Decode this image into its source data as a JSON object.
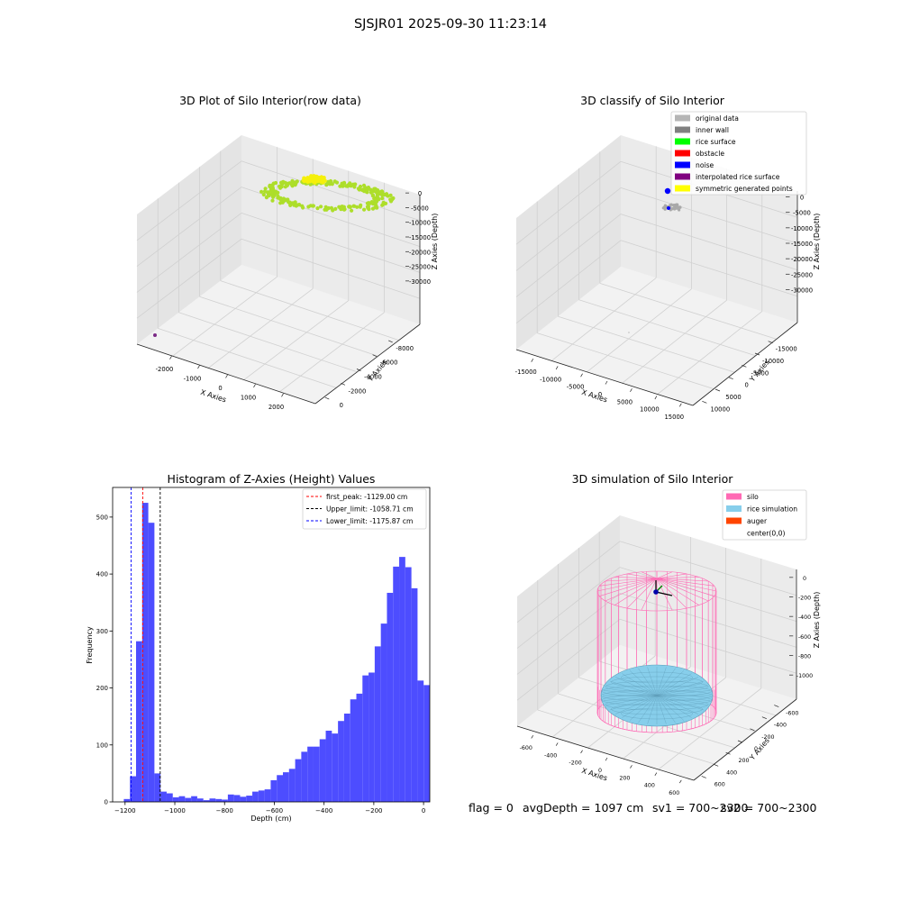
{
  "suptitle": "SJSJR01 2025-09-30 11:23:14",
  "status": {
    "flag": "flag = 0",
    "avg_depth": "avgDepth = 1097 cm",
    "sv1": "sv1 = 700~2300",
    "sv2": "sv2 = 700~2300"
  },
  "chart_data": [
    {
      "id": "raw",
      "type": "scatter",
      "projection": "3d",
      "title": "3D Plot of Silo Interior(row data)",
      "xlabel": "X Axies",
      "ylabel": "Y Axies",
      "zlabel": "Z Axies (Depth)",
      "x_ticks": [
        "-2000",
        "-1000",
        "0",
        "1000",
        "2000"
      ],
      "y_ticks": [
        "0",
        "-2000",
        "-4000",
        "-6000",
        "-8000"
      ],
      "z_ticks": [
        "0",
        "-5000",
        "-10000",
        "-15000",
        "-20000",
        "-25000",
        "-30000"
      ],
      "colors": {
        "surface": "#adde2a",
        "top": "#f5f00a",
        "outlier": "#7b2a86"
      }
    },
    {
      "id": "classify",
      "type": "scatter",
      "projection": "3d",
      "title": "3D classify of Silo Interior",
      "xlabel": "X Axies",
      "ylabel": "Y Axies",
      "zlabel": "Z Axies (Depth)",
      "x_ticks": [
        "-15000",
        "-10000",
        "-5000",
        "0",
        "5000",
        "10000",
        "15000"
      ],
      "y_ticks": [
        "10000",
        "5000",
        "0",
        "-5000",
        "-10000",
        "-15000"
      ],
      "z_ticks": [
        "0",
        "-5000",
        "-10000",
        "-15000",
        "-20000",
        "-25000",
        "-30000"
      ],
      "legend": [
        {
          "label": "original data",
          "color": "#b5b5b5"
        },
        {
          "label": "inner wall",
          "color": "#808080"
        },
        {
          "label": "rice surface",
          "color": "#00ff00"
        },
        {
          "label": "obstacle",
          "color": "#ff0000"
        },
        {
          "label": "noise",
          "color": "#0000ff"
        },
        {
          "label": "interpolated rice surface",
          "color": "#800080"
        },
        {
          "label": "symmetric generated points",
          "color": "#ffff00"
        }
      ]
    },
    {
      "id": "histogram",
      "type": "bar",
      "title": "Histogram of Z-Axies (Height) Values",
      "xlabel": "Depth (cm)",
      "ylabel": "Frequency",
      "xlim": [
        -1250,
        25
      ],
      "ylim": [
        0,
        552
      ],
      "x_ticks": [
        -1200,
        -1000,
        -800,
        -600,
        -400,
        -200,
        0
      ],
      "y_ticks": [
        0,
        100,
        200,
        300,
        400,
        500
      ],
      "bin_start": -1205,
      "bin_width": 24.6,
      "values": [
        5,
        45,
        282,
        525,
        490,
        50,
        18,
        15,
        8,
        10,
        7,
        10,
        6,
        3,
        6,
        5,
        4,
        13,
        12,
        9,
        11,
        18,
        20,
        22,
        38,
        47,
        52,
        58,
        75,
        88,
        97,
        97,
        110,
        125,
        120,
        142,
        155,
        180,
        190,
        222,
        227,
        273,
        313,
        367,
        413,
        430,
        412,
        375,
        213,
        205
      ],
      "bar_color": "#4d4dff",
      "vlines": [
        {
          "label": "first_peak: -1129.00 cm",
          "x": -1129,
          "color": "#ff0000"
        },
        {
          "label": "Upper_limit: -1058.71 cm",
          "x": -1058.71,
          "color": "#000000"
        },
        {
          "label": "Lower_limit: -1175.87 cm",
          "x": -1175.87,
          "color": "#0000ff"
        }
      ]
    },
    {
      "id": "simulation",
      "type": "surface",
      "projection": "3d",
      "title": "3D simulation of Silo Interior",
      "xlabel": "X Axies",
      "ylabel": "Y Axies",
      "zlabel": "Z Axies (Depth)",
      "x_ticks": [
        "-600",
        "-400",
        "-200",
        "0",
        "200",
        "400",
        "600"
      ],
      "y_ticks": [
        "600",
        "400",
        "200",
        "0",
        "-200",
        "-400",
        "-600"
      ],
      "z_ticks": [
        "0",
        "-200",
        "-400",
        "-600",
        "-800",
        "-1000"
      ],
      "legend": [
        {
          "label": "silo",
          "color": "#ff69b4"
        },
        {
          "label": "rice simulation",
          "color": "#87ceeb"
        },
        {
          "label": "auger",
          "color": "#ff4500"
        },
        {
          "label": "center(0,0)",
          "color": "#ffffff"
        }
      ]
    }
  ]
}
